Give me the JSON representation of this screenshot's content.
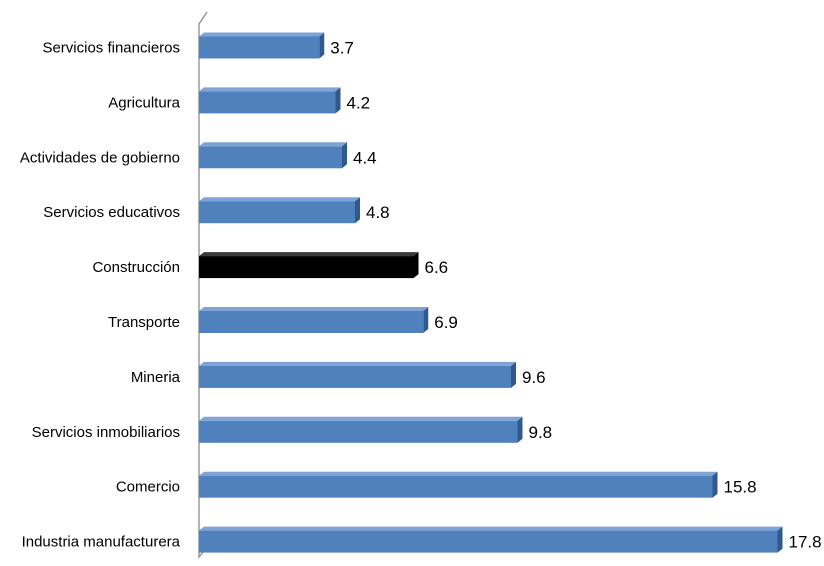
{
  "chart_data": {
    "type": "bar",
    "orientation": "horizontal",
    "categories": [
      "Servicios financieros",
      "Agricultura",
      "Actividades de gobierno",
      "Servicios educativos",
      "Construcción",
      "Transporte",
      "Mineria",
      "Servicios inmobiliarios",
      "Comercio",
      "Industria manufacturera"
    ],
    "values": [
      3.7,
      4.2,
      4.4,
      4.8,
      6.6,
      6.9,
      9.6,
      9.8,
      15.8,
      17.8
    ],
    "value_labels": [
      "3.7",
      "4.2",
      "4.4",
      "4.8",
      "6.6",
      "6.9",
      "9.6",
      "9.8",
      "15.8",
      "17.8"
    ],
    "highlight_category": "Construcción",
    "xlim": [
      0,
      17.8
    ],
    "grid": false,
    "legend": "none",
    "style": "3d"
  },
  "colors": {
    "bar": "#4F81BD",
    "bar_side": "#2E5A8F",
    "bar_top": "#7FA3D6",
    "highlight": "#000000",
    "highlight_side": "#000000",
    "highlight_top": "#3a3a3a",
    "axis": "#8C8C8C",
    "text": "#000000"
  }
}
